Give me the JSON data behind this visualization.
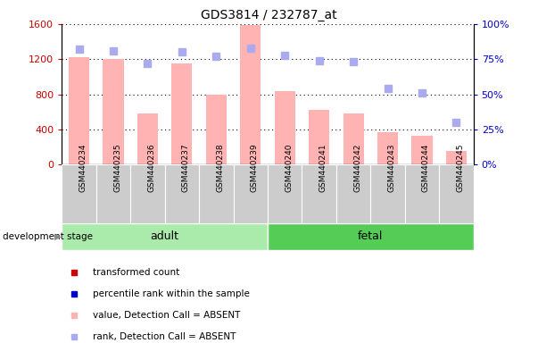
{
  "title": "GDS3814 / 232787_at",
  "samples": [
    "GSM440234",
    "GSM440235",
    "GSM440236",
    "GSM440237",
    "GSM440238",
    "GSM440239",
    "GSM440240",
    "GSM440241",
    "GSM440242",
    "GSM440243",
    "GSM440244",
    "GSM440245"
  ],
  "bar_values": [
    1220,
    1200,
    580,
    1150,
    800,
    1590,
    840,
    620,
    580,
    370,
    330,
    160
  ],
  "rank_values": [
    82,
    81,
    72,
    80,
    77,
    83,
    78,
    74,
    73,
    54,
    51,
    30
  ],
  "groups": [
    {
      "label": "adult",
      "start": 0,
      "end": 5,
      "color": "#aaeaaa"
    },
    {
      "label": "fetal",
      "start": 6,
      "end": 11,
      "color": "#55cc55"
    }
  ],
  "ylim_left": [
    0,
    1600
  ],
  "ylim_right": [
    0,
    100
  ],
  "yticks_left": [
    0,
    400,
    800,
    1200,
    1600
  ],
  "yticks_right": [
    0,
    25,
    50,
    75,
    100
  ],
  "bar_color_absent": "#ffb3b3",
  "rank_color_absent": "#aaaaee",
  "group_label": "development stage",
  "legend_items": [
    {
      "label": "transformed count",
      "color": "#cc0000"
    },
    {
      "label": "percentile rank within the sample",
      "color": "#0000cc"
    },
    {
      "label": "value, Detection Call = ABSENT",
      "color": "#ffb3b3"
    },
    {
      "label": "rank, Detection Call = ABSENT",
      "color": "#aaaaee"
    }
  ],
  "tick_label_color_left": "#cc0000",
  "tick_label_color_right": "#0000cc",
  "sample_box_color": "#cccccc"
}
